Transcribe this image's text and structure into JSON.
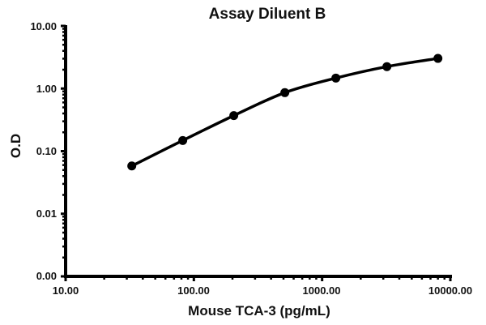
{
  "chart_data": {
    "type": "line",
    "title": "Assay Diluent B",
    "xlabel": "Mouse TCA-3 (pg/mL)",
    "ylabel": "O.D",
    "xscale": "log",
    "yscale": "log",
    "xlim": [
      10,
      10000
    ],
    "ylim": [
      0.001,
      10
    ],
    "x_ticks": [
      "10.00",
      "100.00",
      "1000.00",
      "10000.00"
    ],
    "y_ticks": [
      "0.00",
      "0.01",
      "0.10",
      "1.00",
      "10.00"
    ],
    "grid": false,
    "legend": null,
    "series": [
      {
        "name": "Assay Diluent B",
        "x": [
          32.8,
          81.9,
          204.8,
          512,
          1280,
          3200,
          8000
        ],
        "values": [
          0.058,
          0.148,
          0.37,
          0.86,
          1.47,
          2.24,
          3.03
        ],
        "color": "#000000",
        "marker": "circle"
      }
    ]
  }
}
